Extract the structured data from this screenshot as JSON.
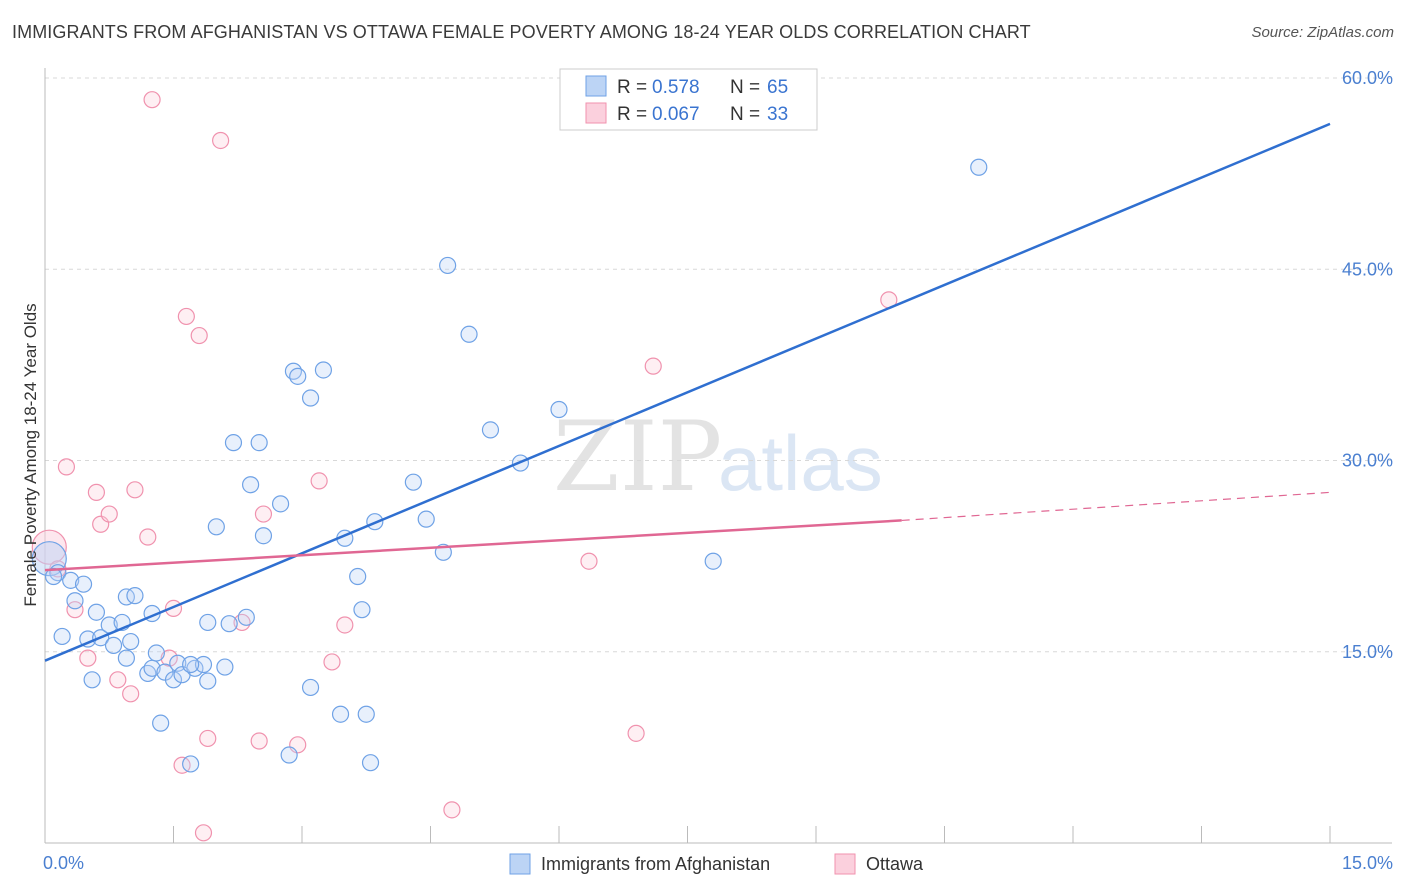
{
  "title": "IMMIGRANTS FROM AFGHANISTAN VS OTTAWA FEMALE POVERTY AMONG 18-24 YEAR OLDS CORRELATION CHART",
  "source": "Source: ZipAtlas.com",
  "watermark": {
    "zip": "ZIP",
    "atlas": "atlas"
  },
  "colors": {
    "blue": "#6fa2e6",
    "blue_line": "#2f6fd0",
    "pink": "#f092ae",
    "pink_line": "#e06793",
    "grid": "#d8d8d8"
  },
  "chart_data": {
    "type": "scatter",
    "xlabel": "",
    "ylabel": "Female Poverty Among 18-24 Year Olds",
    "xlim": [
      0,
      15
    ],
    "ylim": [
      0,
      60
    ],
    "x_ticks": [
      0,
      1.5,
      3,
      4.5,
      6,
      7.5,
      9,
      10.5,
      12,
      13.5,
      15
    ],
    "x_tick_labels": [
      {
        "value": 0,
        "label": "0.0%"
      },
      {
        "value": 15,
        "label": "15.0%"
      }
    ],
    "y_ticks": [
      {
        "value": 15,
        "label": "15.0%"
      },
      {
        "value": 30,
        "label": "30.0%"
      },
      {
        "value": 45,
        "label": "45.0%"
      },
      {
        "value": 60,
        "label": "60.0%"
      }
    ],
    "grid": true,
    "legend": {
      "position": "top-center",
      "entries": [
        {
          "r_label": "R =",
          "r_value": "0.578",
          "n_label": "N =",
          "n_value": "65"
        },
        {
          "r_label": "R =",
          "r_value": "0.067",
          "n_label": "N =",
          "n_value": "33"
        }
      ]
    },
    "series": [
      {
        "name": "Immigrants from Afghanistan",
        "trend": {
          "x": [
            0,
            15
          ],
          "y": [
            14.3,
            56.4
          ]
        },
        "points": [
          [
            0.05,
            22.3
          ],
          [
            0.15,
            21.2
          ],
          [
            0.1,
            20.9
          ],
          [
            0.3,
            20.6
          ],
          [
            0.45,
            20.3
          ],
          [
            0.35,
            19.0
          ],
          [
            0.2,
            16.2
          ],
          [
            0.5,
            16.0
          ],
          [
            0.65,
            16.1
          ],
          [
            0.6,
            18.1
          ],
          [
            0.75,
            17.1
          ],
          [
            0.9,
            17.3
          ],
          [
            0.95,
            19.3
          ],
          [
            1.05,
            19.4
          ],
          [
            0.8,
            15.5
          ],
          [
            0.95,
            14.5
          ],
          [
            0.55,
            12.8
          ],
          [
            1.2,
            13.3
          ],
          [
            1.25,
            13.7
          ],
          [
            1.3,
            14.9
          ],
          [
            1.4,
            13.4
          ],
          [
            1.5,
            12.8
          ],
          [
            1.55,
            14.1
          ],
          [
            1.6,
            13.2
          ],
          [
            1.75,
            13.7
          ],
          [
            1.85,
            14.0
          ],
          [
            1.9,
            12.7
          ],
          [
            1.35,
            9.4
          ],
          [
            1.7,
            6.2
          ],
          [
            2.1,
            13.8
          ],
          [
            2.15,
            17.2
          ],
          [
            2.35,
            17.7
          ],
          [
            2.0,
            24.8
          ],
          [
            2.2,
            31.4
          ],
          [
            2.4,
            28.1
          ],
          [
            2.5,
            31.4
          ],
          [
            2.55,
            24.1
          ],
          [
            2.75,
            26.6
          ],
          [
            2.9,
            37.0
          ],
          [
            2.95,
            36.6
          ],
          [
            3.1,
            34.9
          ],
          [
            3.25,
            37.1
          ],
          [
            2.85,
            6.9
          ],
          [
            3.1,
            12.2
          ],
          [
            3.45,
            10.1
          ],
          [
            3.75,
            10.1
          ],
          [
            3.5,
            23.9
          ],
          [
            3.65,
            20.9
          ],
          [
            3.7,
            18.3
          ],
          [
            3.8,
            6.3
          ],
          [
            3.85,
            25.2
          ],
          [
            4.3,
            28.3
          ],
          [
            4.45,
            25.4
          ],
          [
            4.65,
            22.8
          ],
          [
            4.7,
            45.3
          ],
          [
            4.95,
            39.9
          ],
          [
            5.2,
            32.4
          ],
          [
            5.55,
            29.8
          ],
          [
            6.0,
            34.0
          ],
          [
            7.8,
            22.1
          ],
          [
            10.9,
            53.0
          ],
          [
            1.0,
            15.8
          ],
          [
            1.25,
            18.0
          ],
          [
            1.7,
            14.0
          ],
          [
            1.9,
            17.3
          ]
        ]
      },
      {
        "name": "Ottawa",
        "trend": {
          "x": [
            0,
            10.0
          ],
          "y": [
            21.4,
            25.3
          ]
        },
        "trend_extension": {
          "x": [
            10.0,
            15
          ],
          "y": [
            25.3,
            27.5
          ]
        },
        "points": [
          [
            0.05,
            23.2
          ],
          [
            0.15,
            21.5
          ],
          [
            0.35,
            18.3
          ],
          [
            0.25,
            29.5
          ],
          [
            0.5,
            14.5
          ],
          [
            0.6,
            27.5
          ],
          [
            0.65,
            25.0
          ],
          [
            0.75,
            25.8
          ],
          [
            0.85,
            12.8
          ],
          [
            1.0,
            11.7
          ],
          [
            1.05,
            27.7
          ],
          [
            1.2,
            24.0
          ],
          [
            1.25,
            58.3
          ],
          [
            1.45,
            14.5
          ],
          [
            1.5,
            18.4
          ],
          [
            1.6,
            6.1
          ],
          [
            1.65,
            41.3
          ],
          [
            1.8,
            39.8
          ],
          [
            1.9,
            8.2
          ],
          [
            1.85,
            0.8
          ],
          [
            2.05,
            55.1
          ],
          [
            2.3,
            17.3
          ],
          [
            2.5,
            8.0
          ],
          [
            2.55,
            25.8
          ],
          [
            2.95,
            7.7
          ],
          [
            3.2,
            28.4
          ],
          [
            3.35,
            14.2
          ],
          [
            3.5,
            17.1
          ],
          [
            4.75,
            2.6
          ],
          [
            6.35,
            22.1
          ],
          [
            6.9,
            8.6
          ],
          [
            7.1,
            37.4
          ],
          [
            9.85,
            42.6
          ]
        ]
      }
    ]
  }
}
